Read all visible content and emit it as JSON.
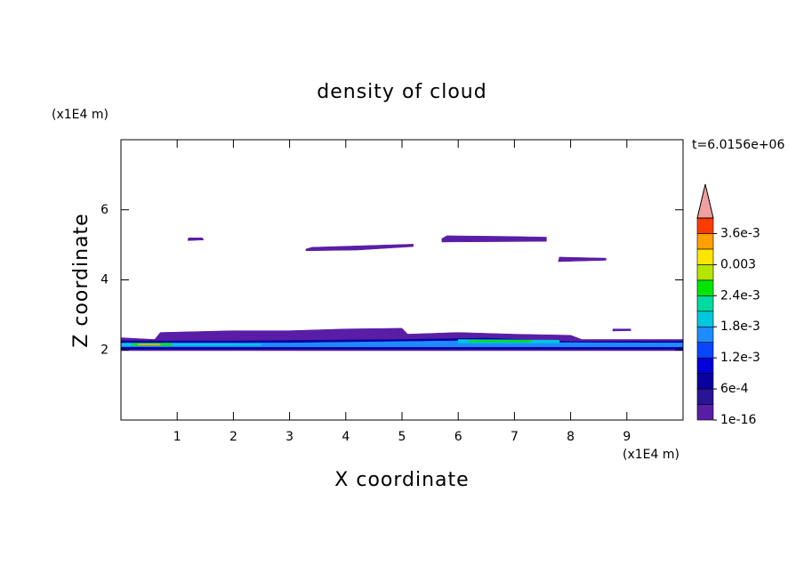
{
  "chart_data": {
    "type": "contour",
    "title": "density of cloud",
    "x_label": "X coordinate",
    "y_label": "Z coordinate",
    "x_unit": "(x1E4 m)",
    "y_unit": "(x1E4 m)",
    "annotation": "t=6.0156e+06",
    "xlim": [
      0,
      10
    ],
    "ylim": [
      0,
      8
    ],
    "xticks": [
      1,
      2,
      3,
      4,
      5,
      6,
      7,
      8,
      9
    ],
    "yticks": [
      2,
      4,
      6
    ],
    "colorbar": {
      "clim": [
        1e-16,
        0.0039
      ],
      "colors": [
        "#5a1ea6",
        "#2a1496",
        "#0a00a0",
        "#0000d8",
        "#0a46ff",
        "#1e8cff",
        "#00c8dc",
        "#00dca0",
        "#00e600",
        "#b4e600",
        "#ffe600",
        "#ffa000",
        "#ff3c00"
      ],
      "extend_color": "#f0a0a0",
      "ticks": [
        {
          "value": 1e-16,
          "label": "1e-16"
        },
        {
          "value": 0.0006,
          "label": "6e-4"
        },
        {
          "value": 0.0012,
          "label": "1.2e-3"
        },
        {
          "value": 0.0018,
          "label": "1.8e-3"
        },
        {
          "value": 0.0024,
          "label": "2.4e-3"
        },
        0.003,
        {
          "value": 0.0036,
          "label": "3.6e-3"
        }
      ]
    },
    "regions": [
      {
        "level": 0.0001,
        "x": [
          1.19,
          1.47,
          1.45,
          1.2
        ],
        "z": [
          5.12,
          5.14,
          5.2,
          5.2
        ]
      },
      {
        "level": 0.0001,
        "x": [
          3.29,
          4.2,
          5.2,
          5.2,
          4.4,
          3.4,
          3.29
        ],
        "z": [
          4.83,
          4.85,
          4.95,
          5.02,
          4.98,
          4.93,
          4.88
        ]
      },
      {
        "level": 0.0001,
        "x": [
          5.71,
          7.57,
          7.57,
          6.9,
          5.8,
          5.71
        ],
        "z": [
          5.08,
          5.1,
          5.22,
          5.24,
          5.26,
          5.18
        ]
      },
      {
        "level": 0.0001,
        "x": [
          7.78,
          8.63,
          8.63,
          7.8
        ],
        "z": [
          4.52,
          4.56,
          4.62,
          4.65
        ]
      },
      {
        "level": 0.0001,
        "x": [
          8.75,
          9.07,
          9.07,
          8.75
        ],
        "z": [
          2.54,
          2.55,
          2.6,
          2.6
        ]
      },
      {
        "level": 0.0001,
        "x": [
          0,
          10,
          10,
          8.2,
          8,
          7,
          6,
          5.1,
          5,
          4,
          3,
          2,
          0.7,
          0.6,
          0
        ],
        "z": [
          1.98,
          1.98,
          2.3,
          2.3,
          2.42,
          2.45,
          2.5,
          2.45,
          2.62,
          2.6,
          2.55,
          2.55,
          2.5,
          2.3,
          2.35
        ]
      },
      {
        "level": 0.0007,
        "x": [
          0,
          10,
          10,
          8,
          6.5,
          5,
          3.5,
          2,
          0
        ],
        "z": [
          2.02,
          2.02,
          2.25,
          2.24,
          2.34,
          2.3,
          2.28,
          2.26,
          2.26
        ]
      },
      {
        "level": 0.0016,
        "x": [
          0,
          10,
          10,
          7.8,
          6,
          3,
          0
        ],
        "z": [
          2.09,
          2.09,
          2.2,
          2.21,
          2.26,
          2.2,
          2.2
        ]
      },
      {
        "level": 0.0019,
        "x": [
          0,
          2.5,
          2.5,
          0
        ],
        "z": [
          2.12,
          2.13,
          2.17,
          2.18
        ]
      },
      {
        "level": 0.0019,
        "x": [
          6,
          7.8,
          7.8,
          6
        ],
        "z": [
          2.2,
          2.2,
          2.28,
          2.3
        ]
      },
      {
        "level": 0.0025,
        "x": [
          6.2,
          7.3,
          7.3,
          6.2
        ],
        "z": [
          2.23,
          2.23,
          2.27,
          2.27
        ]
      },
      {
        "level": 0.0025,
        "x": [
          0.2,
          0.9,
          0.9,
          0.2
        ],
        "z": [
          2.13,
          2.13,
          2.19,
          2.19
        ]
      },
      {
        "level": 0.0034,
        "x": [
          0.3,
          0.7,
          0.7,
          0.3
        ],
        "z": [
          2.14,
          2.14,
          2.17,
          2.17
        ]
      }
    ]
  }
}
